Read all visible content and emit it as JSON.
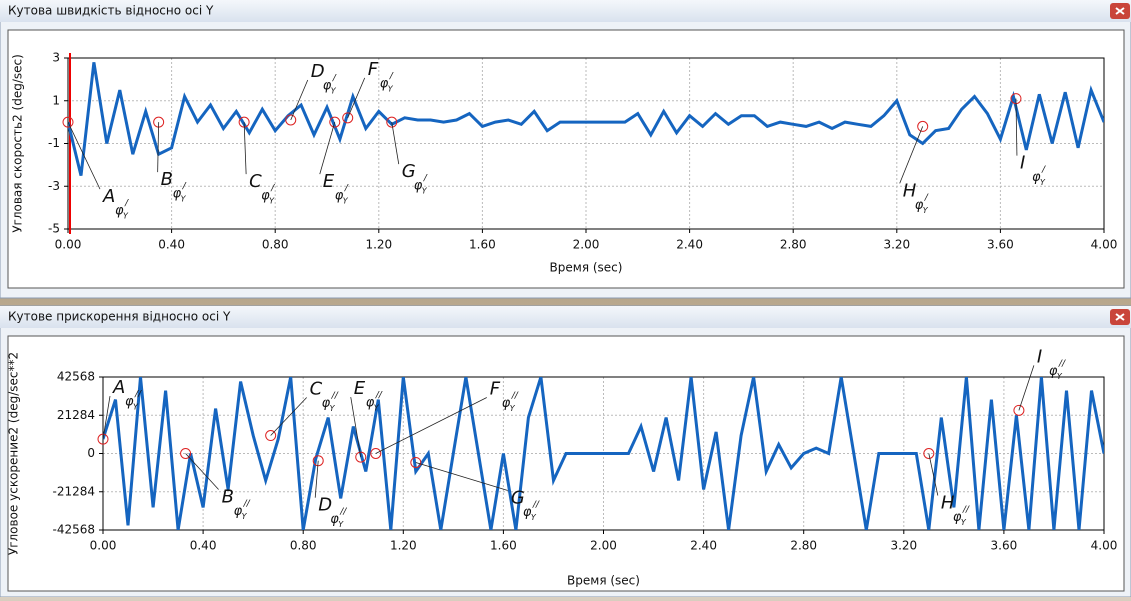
{
  "chart_data": [
    {
      "type": "line",
      "title": "Кутова швидкість відносно осі Y",
      "xlabel": "Время (sec)",
      "ylabel": "Угловая скорость2 (deg/sec)",
      "color": "#1565c0",
      "x": [
        0,
        0.05,
        0.1,
        0.15,
        0.2,
        0.25,
        0.3,
        0.35,
        0.4,
        0.45,
        0.5,
        0.55,
        0.6,
        0.65,
        0.7,
        0.75,
        0.8,
        0.85,
        0.9,
        0.95,
        1,
        1.05,
        1.1,
        1.15,
        1.2,
        1.25,
        1.3,
        1.35,
        1.4,
        1.45,
        1.5,
        1.55,
        1.6,
        1.65,
        1.7,
        1.75,
        1.8,
        1.85,
        1.9,
        1.95,
        2,
        2.05,
        2.1,
        2.15,
        2.2,
        2.25,
        2.3,
        2.35,
        2.4,
        2.45,
        2.5,
        2.55,
        2.6,
        2.65,
        2.7,
        2.75,
        2.8,
        2.85,
        2.9,
        2.95,
        3,
        3.05,
        3.1,
        3.15,
        3.2,
        3.25,
        3.3,
        3.35,
        3.4,
        3.45,
        3.5,
        3.55,
        3.6,
        3.65,
        3.7,
        3.75,
        3.8,
        3.85,
        3.9,
        3.95,
        4
      ],
      "values": [
        0,
        -2.5,
        2.8,
        -1,
        1.5,
        -1.5,
        0.5,
        -1.5,
        -1.2,
        1.2,
        0,
        0.8,
        -0.3,
        0.5,
        -0.5,
        0.6,
        -0.4,
        0.3,
        0.8,
        -0.6,
        0.7,
        -0.8,
        1.2,
        -0.3,
        0.5,
        -0.1,
        0.2,
        0.1,
        0.1,
        0,
        0.1,
        0.4,
        -0.2,
        0,
        0.1,
        -0.1,
        0.5,
        -0.4,
        0,
        0,
        0,
        0,
        0,
        0,
        0.4,
        -0.6,
        0.5,
        -0.5,
        0.3,
        -0.2,
        0.4,
        -0.1,
        0.3,
        0.3,
        -0.2,
        0,
        -0.1,
        -0.2,
        0,
        -0.3,
        0,
        -0.1,
        -0.2,
        0.3,
        1,
        -0.6,
        -1,
        -0.4,
        -0.3,
        0.6,
        1.2,
        0.4,
        -0.8,
        1.2,
        -1.3,
        1.3,
        -1,
        1.4,
        -1.2,
        1.5,
        0
      ],
      "xlim": [
        0,
        4
      ],
      "ylim": [
        -5,
        3
      ],
      "xticks": [
        {
          "value": 0,
          "label": "0.00"
        },
        {
          "value": 0.4,
          "label": "0.40"
        },
        {
          "value": 0.8,
          "label": "0.80"
        },
        {
          "value": 1.2,
          "label": "1.20"
        },
        {
          "value": 1.6,
          "label": "1.60"
        },
        {
          "value": 2,
          "label": "2.00"
        },
        {
          "value": 2.4,
          "label": "2.40"
        },
        {
          "value": 2.8,
          "label": "2.80"
        },
        {
          "value": 3.2,
          "label": "3.20"
        },
        {
          "value": 3.6,
          "label": "3.60"
        },
        {
          "value": 4,
          "label": "4.00"
        }
      ],
      "yticks": [
        3,
        1,
        -1,
        -3,
        -5
      ],
      "grid": true,
      "annotations": [
        {
          "letter": "A",
          "symbol": "φ",
          "sub": "Y",
          "sup": "/",
          "x": 0,
          "y": 0
        },
        {
          "letter": "B",
          "symbol": "φ",
          "sub": "Y",
          "sup": "/",
          "x": 0.35,
          "y": 0
        },
        {
          "letter": "C",
          "symbol": "φ",
          "sub": "Y",
          "sup": "/",
          "x": 0.68,
          "y": 0
        },
        {
          "letter": "D",
          "symbol": "φ",
          "sub": "Y",
          "sup": "/",
          "x": 0.86,
          "y": 0.1
        },
        {
          "letter": "E",
          "symbol": "φ",
          "sub": "Y",
          "sup": "/",
          "x": 1.03,
          "y": 0
        },
        {
          "letter": "F",
          "symbol": "φ",
          "sub": "Y",
          "sup": "/",
          "x": 1.08,
          "y": 0.2
        },
        {
          "letter": "G",
          "symbol": "φ",
          "sub": "Y",
          "sup": "/",
          "x": 1.25,
          "y": 0
        },
        {
          "letter": "H",
          "symbol": "φ",
          "sub": "Y",
          "sup": "/",
          "x": 3.3,
          "y": -0.2
        },
        {
          "letter": "I",
          "symbol": "φ",
          "sub": "Y",
          "sup": "/",
          "x": 3.66,
          "y": 1.1
        }
      ]
    },
    {
      "type": "line",
      "title": "Кутове прискорення відносно осі Y",
      "xlabel": "Время (sec)",
      "ylabel": "Угловое ускорение2 (deg/sec**2",
      "color": "#1565c0",
      "x": [
        0,
        0.05,
        0.1,
        0.15,
        0.2,
        0.25,
        0.3,
        0.35,
        0.4,
        0.45,
        0.5,
        0.55,
        0.6,
        0.65,
        0.7,
        0.75,
        0.8,
        0.85,
        0.9,
        0.95,
        1,
        1.05,
        1.1,
        1.15,
        1.2,
        1.25,
        1.3,
        1.35,
        1.4,
        1.45,
        1.5,
        1.55,
        1.6,
        1.65,
        1.7,
        1.75,
        1.8,
        1.85,
        1.9,
        1.95,
        2,
        2.05,
        2.1,
        2.15,
        2.2,
        2.25,
        2.3,
        2.35,
        2.4,
        2.45,
        2.5,
        2.55,
        2.6,
        2.65,
        2.7,
        2.75,
        2.8,
        2.85,
        2.9,
        2.95,
        3,
        3.05,
        3.1,
        3.15,
        3.2,
        3.25,
        3.3,
        3.35,
        3.4,
        3.45,
        3.5,
        3.55,
        3.6,
        3.65,
        3.7,
        3.75,
        3.8,
        3.85,
        3.9,
        3.95,
        4
      ],
      "values": [
        8000,
        30000,
        -40000,
        42568,
        -30000,
        35000,
        -42568,
        0,
        -30000,
        25000,
        -20000,
        40000,
        10000,
        -15000,
        8000,
        42568,
        -42568,
        -3000,
        20000,
        -25000,
        15000,
        -10000,
        30000,
        -42568,
        42568,
        -10000,
        0,
        -42568,
        0,
        42568,
        0,
        -42568,
        0,
        -42568,
        20000,
        42568,
        -15000,
        0,
        0,
        0,
        0,
        0,
        0,
        15000,
        -10000,
        20000,
        -15000,
        42568,
        -20000,
        12000,
        -42568,
        10000,
        42568,
        -10000,
        5000,
        -8000,
        0,
        3000,
        0,
        42568,
        0,
        -42568,
        0,
        0,
        0,
        0,
        -42568,
        20000,
        -30000,
        42568,
        -42568,
        30000,
        -42568,
        21284,
        -42568,
        42568,
        -42568,
        35000,
        -42568,
        35000,
        0
      ],
      "xlim": [
        0,
        4
      ],
      "ylim": [
        -42568,
        42568
      ],
      "xticks": [
        {
          "value": 0,
          "label": "0.00"
        },
        {
          "value": 0.4,
          "label": "0.40"
        },
        {
          "value": 0.8,
          "label": "0.80"
        },
        {
          "value": 1.2,
          "label": "1.20"
        },
        {
          "value": 1.6,
          "label": "1.60"
        },
        {
          "value": 2,
          "label": "2.00"
        },
        {
          "value": 2.4,
          "label": "2.40"
        },
        {
          "value": 2.8,
          "label": "2.80"
        },
        {
          "value": 3.2,
          "label": "3.20"
        },
        {
          "value": 3.6,
          "label": "3.60"
        },
        {
          "value": 4,
          "label": "4.00"
        }
      ],
      "yticks": [
        42568,
        21284,
        0,
        -21284,
        -42568
      ],
      "grid": true,
      "annotations": [
        {
          "letter": "A",
          "symbol": "φ",
          "sub": "Y",
          "sup": "//",
          "x": 0,
          "y": 8000
        },
        {
          "letter": "B",
          "symbol": "φ",
          "sub": "Y",
          "sup": "//",
          "x": 0.33,
          "y": 0
        },
        {
          "letter": "C",
          "symbol": "φ",
          "sub": "Y",
          "sup": "//",
          "x": 0.67,
          "y": 10000
        },
        {
          "letter": "D",
          "symbol": "φ",
          "sub": "Y",
          "sup": "//",
          "x": 0.86,
          "y": -4000
        },
        {
          "letter": "E",
          "symbol": "φ",
          "sub": "Y",
          "sup": "//",
          "x": 1.03,
          "y": -2000
        },
        {
          "letter": "F",
          "symbol": "φ",
          "sub": "Y",
          "sup": "//",
          "x": 1.09,
          "y": 0
        },
        {
          "letter": "G",
          "symbol": "φ",
          "sub": "Y",
          "sup": "//",
          "x": 1.25,
          "y": -5000
        },
        {
          "letter": "H",
          "symbol": "φ",
          "sub": "Y",
          "sup": "//",
          "x": 3.3,
          "y": 0
        },
        {
          "letter": "I",
          "symbol": "φ",
          "sub": "Y",
          "sup": "//",
          "x": 3.66,
          "y": 24000
        }
      ]
    }
  ]
}
